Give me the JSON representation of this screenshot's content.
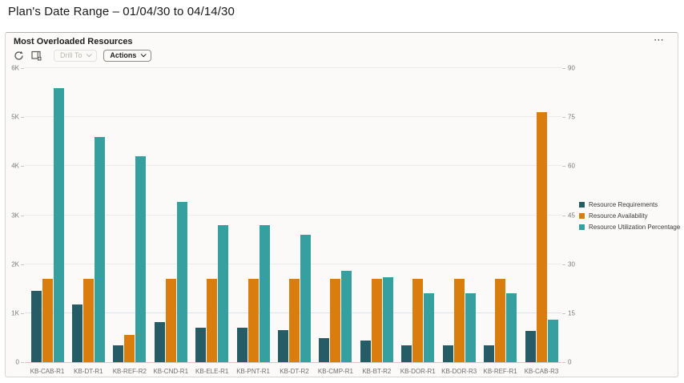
{
  "page": {
    "title": "Plan's Date Range – 01/04/30 to 04/14/30"
  },
  "panel": {
    "title": "Most Overloaded Resources"
  },
  "toolbar": {
    "drill_to_label": "Drill To",
    "actions_label": "Actions"
  },
  "icons": {
    "more": "⋯"
  },
  "chart_data": {
    "type": "bar",
    "grouping": "grouped",
    "title": "Most Overloaded Resources",
    "categories": [
      "KB-CAB-R1",
      "KB-DT-R1",
      "KB-REF-R2",
      "KB-CND-R1",
      "KB-ELE-R1",
      "KB-PNT-R1",
      "KB-DT-R2",
      "KB-CMP-R1",
      "KB-BT-R2",
      "KB-DOR-R1",
      "KB-DOR-R3",
      "KB-REF-R1",
      "KB-CAB-R3"
    ],
    "series": [
      {
        "name": "Resource Requirements",
        "axis": "left",
        "color": "#255c66",
        "values": [
          1450,
          1175,
          350,
          825,
          700,
          700,
          660,
          490,
          440,
          350,
          350,
          350,
          640
        ]
      },
      {
        "name": "Resource Availability",
        "axis": "left",
        "color": "#d97d0e",
        "values": [
          1700,
          1700,
          560,
          1700,
          1700,
          1700,
          1700,
          1700,
          1700,
          1700,
          1700,
          1700,
          5100
        ]
      },
      {
        "name": "Resource Utilization Percentage",
        "axis": "right",
        "color": "#36a0a0",
        "values": [
          84,
          69,
          63,
          49,
          42,
          42,
          39,
          28,
          26,
          21,
          21,
          21,
          13
        ]
      }
    ],
    "left_axis": {
      "min": 0,
      "max": 6000,
      "tick_step": 1000,
      "tick_labels": [
        "0",
        "1K",
        "2K",
        "3K",
        "4K",
        "5K",
        "6K"
      ]
    },
    "right_axis": {
      "min": 0,
      "max": 90,
      "tick_step": 15,
      "tick_labels": [
        "0",
        "15",
        "30",
        "45",
        "60",
        "75",
        "90"
      ]
    },
    "legend_position": "right",
    "grid": true
  }
}
